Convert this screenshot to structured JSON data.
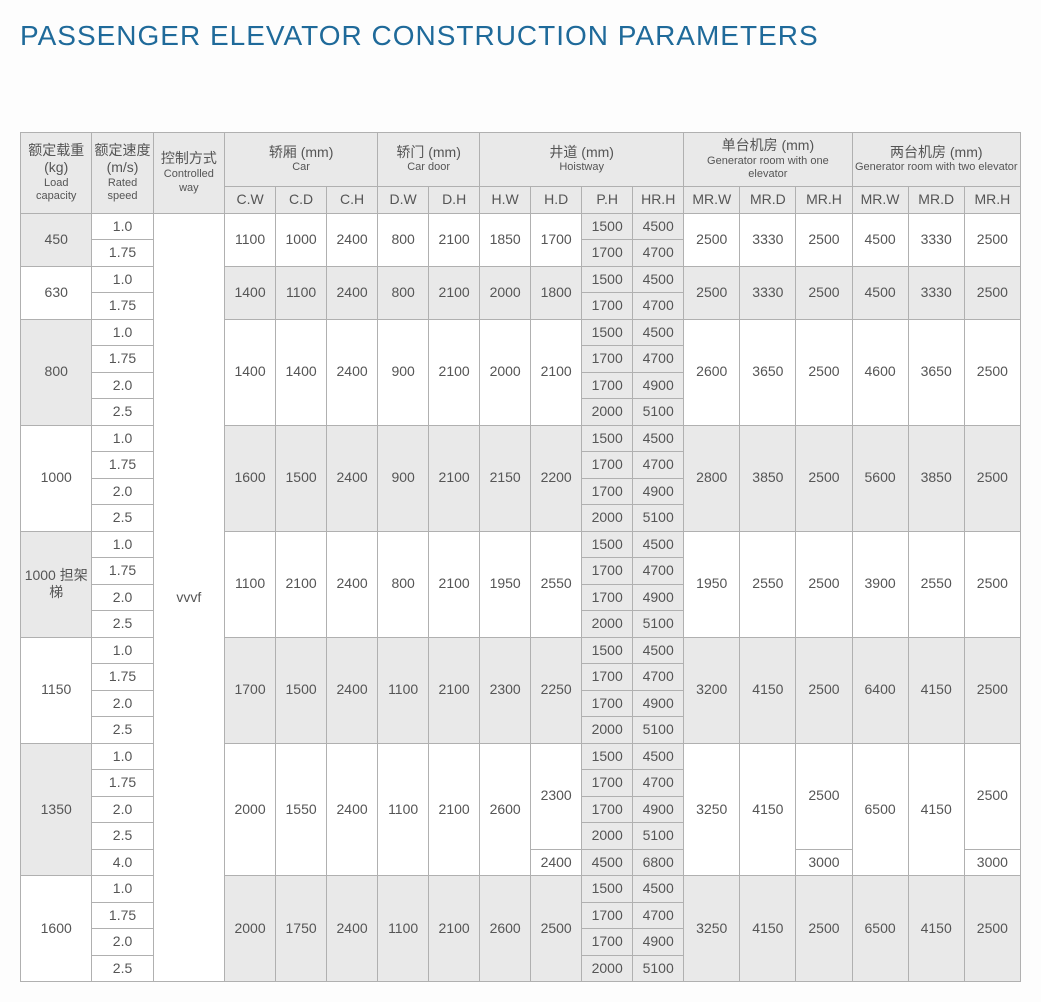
{
  "title": "PASSENGER ELEVATOR CONSTRUCTION PARAMETERS",
  "headers": {
    "load": {
      "cn": "额定载重 (kg)",
      "en": "Load capacity"
    },
    "speed": {
      "cn": "额定速度 (m/s)",
      "en": "Rated speed"
    },
    "ctrl": {
      "cn": "控制方式",
      "en": "Controlled way"
    },
    "car": {
      "cn": "轿厢 (mm)",
      "en": "Car"
    },
    "door": {
      "cn": "轿门 (mm)",
      "en": "Car door"
    },
    "hoist": {
      "cn": "井道 (mm)",
      "en": "Hoistway"
    },
    "gen1": {
      "cn": "单台机房 (mm)",
      "en": "Generator room with one elevator"
    },
    "gen2": {
      "cn": "两台机房 (mm)",
      "en": "Generator room with two elevator"
    },
    "sub": {
      "cw": "C.W",
      "cd": "C.D",
      "ch": "C.H",
      "dw": "D.W",
      "dh": "D.H",
      "hw": "H.W",
      "hd": "H.D",
      "ph": "P.H",
      "hrh": "HR.H",
      "mrw": "MR.W",
      "mrd": "MR.D",
      "mrh": "MR.H",
      "mrw2": "MR.W",
      "mrd2": "MR.D",
      "mrh2": "MR.H"
    }
  },
  "ctrl_value": "vvvf",
  "groups": [
    {
      "load": "450",
      "speeds": [
        "1.0",
        "1.75"
      ],
      "car": [
        "1100",
        "1000",
        "2400"
      ],
      "door": [
        "800",
        "2100"
      ],
      "hw": "1850",
      "hd": [
        "1700",
        "1700"
      ],
      "ph": [
        "1500",
        "1700"
      ],
      "hrh": [
        "4500",
        "4700"
      ],
      "g1": [
        "2500",
        "3330",
        "2500"
      ],
      "g2": [
        "4500",
        "3330",
        "2500"
      ]
    },
    {
      "load": "630",
      "speeds": [
        "1.0",
        "1.75"
      ],
      "car": [
        "1400",
        "1100",
        "2400"
      ],
      "door": [
        "800",
        "2100"
      ],
      "hw": "2000",
      "hd": [
        "1800",
        "1800"
      ],
      "ph": [
        "1500",
        "1700"
      ],
      "hrh": [
        "4500",
        "4700"
      ],
      "g1": [
        "2500",
        "3330",
        "2500"
      ],
      "g2": [
        "4500",
        "3330",
        "2500"
      ]
    },
    {
      "load": "800",
      "speeds": [
        "1.0",
        "1.75",
        "2.0",
        "2.5"
      ],
      "car": [
        "1400",
        "1400",
        "2400"
      ],
      "door": [
        "900",
        "2100"
      ],
      "hw": "2000",
      "hd": [
        "2100",
        "2100",
        "2100",
        "2100"
      ],
      "ph": [
        "1500",
        "1700",
        "1700",
        "2000"
      ],
      "hrh": [
        "4500",
        "4700",
        "4900",
        "5100"
      ],
      "g1": [
        "2600",
        "3650",
        "2500"
      ],
      "g2": [
        "4600",
        "3650",
        "2500"
      ]
    },
    {
      "load": "1000",
      "speeds": [
        "1.0",
        "1.75",
        "2.0",
        "2.5"
      ],
      "car": [
        "1600",
        "1500",
        "2400"
      ],
      "door": [
        "900",
        "2100"
      ],
      "hw": "2150",
      "hd": [
        "2200",
        "2200",
        "2200",
        "2200"
      ],
      "ph": [
        "1500",
        "1700",
        "1700",
        "2000"
      ],
      "hrh": [
        "4500",
        "4700",
        "4900",
        "5100"
      ],
      "g1": [
        "2800",
        "3850",
        "2500"
      ],
      "g2": [
        "5600",
        "3850",
        "2500"
      ]
    },
    {
      "load": "1000 担架梯",
      "speeds": [
        "1.0",
        "1.75",
        "2.0",
        "2.5"
      ],
      "car": [
        "1100",
        "2100",
        "2400"
      ],
      "door": [
        "800",
        "2100"
      ],
      "hw": "1950",
      "hd": [
        "2550",
        "2550",
        "2550",
        "2550"
      ],
      "ph": [
        "1500",
        "1700",
        "1700",
        "2000"
      ],
      "hrh": [
        "4500",
        "4700",
        "4900",
        "5100"
      ],
      "g1": [
        "1950",
        "2550",
        "2500"
      ],
      "g2": [
        "3900",
        "2550",
        "2500"
      ]
    },
    {
      "load": "1150",
      "speeds": [
        "1.0",
        "1.75",
        "2.0",
        "2.5"
      ],
      "car": [
        "1700",
        "1500",
        "2400"
      ],
      "door": [
        "1100",
        "2100"
      ],
      "hw": "2300",
      "hd": [
        "2250",
        "2250",
        "2250",
        "2250"
      ],
      "ph": [
        "1500",
        "1700",
        "1700",
        "2000"
      ],
      "hrh": [
        "4500",
        "4700",
        "4900",
        "5100"
      ],
      "g1": [
        "3200",
        "4150",
        "2500"
      ],
      "g2": [
        "6400",
        "4150",
        "2500"
      ]
    },
    {
      "load": "1350",
      "speeds": [
        "1.0",
        "1.75",
        "2.0",
        "2.5",
        "4.0"
      ],
      "car": [
        "2000",
        "1550",
        "2400"
      ],
      "door": [
        "1100",
        "2100"
      ],
      "hw": "2600",
      "hd_rows": [
        {
          "v": "2300",
          "span": 4
        },
        {
          "v": "2400",
          "span": 1
        }
      ],
      "ph": [
        "1500",
        "1700",
        "1700",
        "2000",
        "4500"
      ],
      "hrh": [
        "4500",
        "4700",
        "4900",
        "5100",
        "6800"
      ],
      "g1": [
        "3250",
        "4150"
      ],
      "g1_mrh_rows": [
        {
          "v": "2500",
          "span": 4
        },
        {
          "v": "3000",
          "span": 1
        }
      ],
      "g2": [
        "6500",
        "4150"
      ],
      "g2_mrh_rows": [
        {
          "v": "2500",
          "span": 4
        },
        {
          "v": "3000",
          "span": 1
        }
      ]
    },
    {
      "load": "1600",
      "speeds": [
        "1.0",
        "1.75",
        "2.0",
        "2.5"
      ],
      "car": [
        "2000",
        "1750",
        "2400"
      ],
      "door": [
        "1100",
        "2100"
      ],
      "hw": "2600",
      "hd": [
        "2500",
        "2500",
        "2500",
        "2500"
      ],
      "ph": [
        "1500",
        "1700",
        "1700",
        "2000"
      ],
      "hrh": [
        "4500",
        "4700",
        "4900",
        "5100"
      ],
      "g1": [
        "3250",
        "4150",
        "2500"
      ],
      "g2": [
        "6500",
        "4150",
        "2500"
      ]
    }
  ]
}
